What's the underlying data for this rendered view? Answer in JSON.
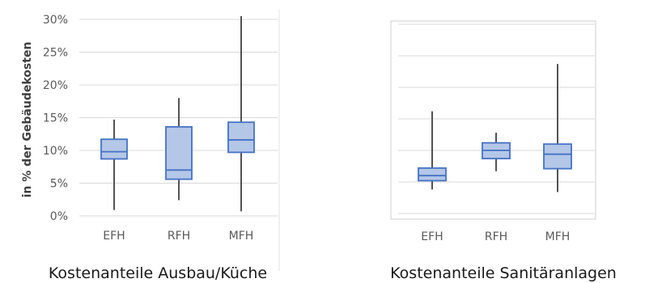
{
  "chart_data": [
    {
      "type": "box",
      "caption": "Kostenanteile Ausbau/Küche",
      "ylabel": "in % der Gebäudekosten",
      "y_ticks": [
        "0%",
        "5%",
        "10%",
        "15%",
        "20%",
        "25%",
        "30%"
      ],
      "ylim": [
        0,
        30
      ],
      "grid": true,
      "categories": [
        "EFH",
        "RFH",
        "MFH"
      ],
      "boxes": [
        {
          "min": 0.9,
          "q1": 8.7,
          "median": 9.8,
          "q3": 11.7,
          "max": 14.7
        },
        {
          "min": 2.4,
          "q1": 5.6,
          "median": 7.0,
          "q3": 13.6,
          "max": 18.0
        },
        {
          "min": 0.7,
          "q1": 9.7,
          "median": 11.6,
          "q3": 14.3,
          "max": 30.5
        }
      ]
    },
    {
      "type": "box",
      "caption": "Kostenanteile Sanitäranlagen",
      "ylabel": "",
      "y_ticks": [],
      "ylim": [
        0,
        30
      ],
      "grid": true,
      "categories": [
        "EFH",
        "RFH",
        "MFH"
      ],
      "boxes": [
        {
          "min": 3.8,
          "q1": 5.2,
          "median": 6.0,
          "q3": 7.2,
          "max": 16.2
        },
        {
          "min": 6.7,
          "q1": 8.7,
          "median": 10.0,
          "q3": 11.2,
          "max": 12.8
        },
        {
          "min": 3.4,
          "q1": 7.1,
          "median": 9.4,
          "q3": 11.0,
          "max": 23.7
        }
      ]
    }
  ],
  "colors": {
    "box_fill": "#b4c7e7",
    "box_stroke": "#4472c4",
    "whisker": "#404040",
    "grid": "#d9d9d9"
  }
}
